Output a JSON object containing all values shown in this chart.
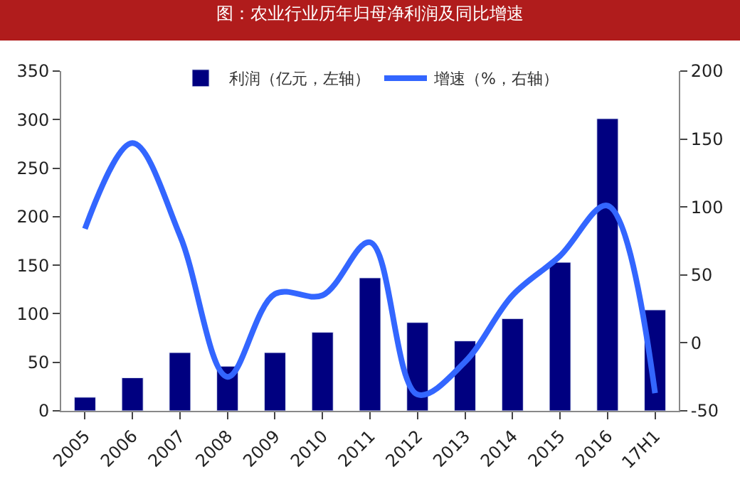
{
  "chart_data": {
    "type": "bar",
    "title": "图：农业行业历年归母净利润及同比增速",
    "categories": [
      "2005",
      "2006",
      "2007",
      "2008",
      "2009",
      "2010",
      "2011",
      "2012",
      "2013",
      "2014",
      "2015",
      "2016",
      "17H1"
    ],
    "series": [
      {
        "name": "利润（亿元，左轴）",
        "color": "#000080",
        "values": [
          14,
          34,
          60,
          46,
          60,
          81,
          137,
          91,
          72,
          95,
          153,
          301,
          104
        ]
      },
      {
        "name": "增速（%，右轴）",
        "type": "line",
        "axis": "y2",
        "color": "#3366ff",
        "values": [
          84,
          147,
          79,
          -25,
          36,
          35,
          74,
          -38,
          -14,
          35,
          64,
          101,
          -37
        ]
      }
    ],
    "ylim": [
      0,
      350
    ],
    "yticks": [
      0,
      50,
      100,
      150,
      200,
      250,
      300,
      350
    ],
    "y2lim": [
      -50,
      200
    ],
    "y2ticks": [
      -50,
      0,
      50,
      100,
      150,
      200
    ],
    "legend": "top",
    "marker": "none",
    "line_style": "solid"
  }
}
